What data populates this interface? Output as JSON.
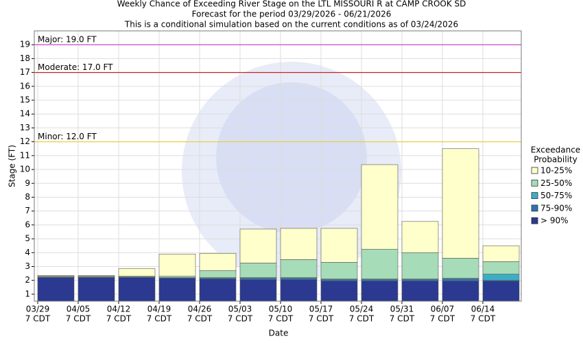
{
  "chart_data": {
    "type": "stacked_bar",
    "title": [
      "Weekly Chance of Exceeding River Stage on the LTL MISSOURI R at CAMP CROOK SD",
      "Forecast for the period 03/29/2026 - 06/21/2026",
      "This is a conditional simulation based on the current conditions as of 03/24/2026"
    ],
    "x_label": "Date",
    "y_label": "Stage (FT)",
    "categories": [
      "03/29",
      "04/05",
      "04/12",
      "04/19",
      "04/26",
      "05/03",
      "05/10",
      "05/17",
      "05/24",
      "05/31",
      "06/07",
      "06/14"
    ],
    "category_time": "7 CDT",
    "legend_title": [
      "Exceedance",
      "Probability"
    ],
    "series": [
      {
        "name": "> 90%",
        "color": "#2b3990",
        "values": [
          1.7,
          1.7,
          1.7,
          1.65,
          1.6,
          1.55,
          1.55,
          1.45,
          1.45,
          1.45,
          1.45,
          1.45
        ]
      },
      {
        "name": "75-90%",
        "color": "#2f72b3",
        "values": [
          0.05,
          0.05,
          0.05,
          0.05,
          0.05,
          0.1,
          0.1,
          0.1,
          0.1,
          0.1,
          0.15,
          0.05
        ]
      },
      {
        "name": "50-75%",
        "color": "#3aaec4",
        "values": [
          0,
          0,
          0,
          0,
          0.05,
          0.05,
          0.05,
          0.05,
          0.05,
          0.05,
          0.05,
          0.45
        ]
      },
      {
        "name": "25-50%",
        "color": "#a6dcb8",
        "values": [
          0.05,
          0.05,
          0.05,
          0.1,
          0.5,
          1.05,
          1.3,
          1.2,
          2.15,
          1.9,
          1.45,
          0.9
        ]
      },
      {
        "name": "10-25%",
        "color": "#ffffcc",
        "values": [
          0.05,
          0.05,
          0.55,
          1.6,
          1.25,
          2.45,
          2.25,
          2.45,
          6.1,
          2.25,
          7.9,
          1.15
        ]
      }
    ],
    "flood_stages": [
      {
        "value": 19,
        "label": "Major: 19.0 FT",
        "color": "#cc33cc"
      },
      {
        "value": 17,
        "label": "Moderate: 17.0 FT",
        "color": "#cc2222"
      },
      {
        "value": 12,
        "label": "Minor: 12.0 FT",
        "color": "#e8d23a"
      }
    ],
    "ylim": [
      0.5,
      20
    ],
    "yticks": [
      1,
      2,
      3,
      4,
      5,
      6,
      7,
      8,
      9,
      10,
      11,
      12,
      13,
      14,
      15,
      16,
      17,
      18,
      19
    ],
    "grid": true
  }
}
